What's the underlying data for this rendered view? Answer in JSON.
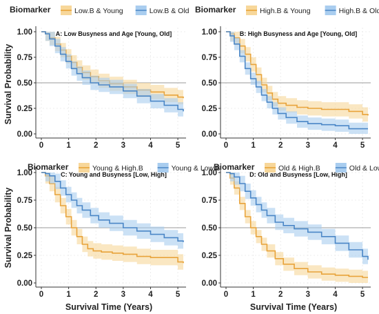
{
  "figure": {
    "ylabel": "Survival Probability",
    "xlabel": "Survival Time (Years)",
    "legend_title": "Biomarker",
    "colors": {
      "orange": "#e8a33a",
      "blue": "#4a86c6",
      "orange_band": "#f7d79a",
      "blue_band": "#a9cdef",
      "refline": "#999999"
    }
  },
  "chart_data": [
    {
      "type": "line",
      "panel_title": "A: Low Busyness and Age [Young, Old]",
      "xlim": [
        0,
        5.2
      ],
      "ylim": [
        0,
        1
      ],
      "xticks": [
        0,
        1,
        2,
        3,
        4,
        5
      ],
      "yticks": [
        0.0,
        0.25,
        0.5,
        0.75,
        1.0
      ],
      "ytick_labels": [
        "0.00",
        "0.25",
        "0.50",
        "0.75",
        "1.00"
      ],
      "reference_line": 0.5,
      "legend": [
        "Low.B & Young",
        "Low.B & Old"
      ],
      "series": [
        {
          "name": "Low.B & Young",
          "color": "orange",
          "band": 0.07,
          "x": [
            0,
            0.15,
            0.3,
            0.5,
            0.7,
            0.9,
            1.1,
            1.3,
            1.5,
            1.8,
            2.1,
            2.5,
            3.0,
            3.5,
            4.0,
            4.5,
            5.0,
            5.2
          ],
          "y": [
            1.0,
            0.98,
            0.94,
            0.88,
            0.82,
            0.76,
            0.7,
            0.65,
            0.6,
            0.56,
            0.52,
            0.49,
            0.46,
            0.43,
            0.41,
            0.38,
            0.36,
            0.35
          ]
        },
        {
          "name": "Low.B & Old",
          "color": "blue",
          "band": 0.07,
          "x": [
            0,
            0.15,
            0.3,
            0.5,
            0.7,
            0.9,
            1.1,
            1.3,
            1.5,
            1.8,
            2.1,
            2.5,
            3.0,
            3.5,
            4.0,
            4.5,
            5.0,
            5.2
          ],
          "y": [
            1.0,
            0.98,
            0.93,
            0.86,
            0.78,
            0.71,
            0.64,
            0.59,
            0.55,
            0.5,
            0.48,
            0.46,
            0.42,
            0.37,
            0.32,
            0.28,
            0.24,
            0.22
          ]
        }
      ]
    },
    {
      "type": "line",
      "panel_title": "B: High Busyness and Age [Young, Old]",
      "xlim": [
        0,
        5.2
      ],
      "ylim": [
        0,
        1
      ],
      "xticks": [
        0,
        1,
        2,
        3,
        4,
        5
      ],
      "yticks": [
        0.0,
        0.25,
        0.5,
        0.75,
        1.0
      ],
      "ytick_labels": [
        "0.00",
        "0.25",
        "0.50",
        "0.75",
        "1.00"
      ],
      "reference_line": 0.5,
      "legend": [
        "High.B & Young",
        "High.B & Old"
      ],
      "series": [
        {
          "name": "High.B & Young",
          "color": "orange",
          "band": 0.07,
          "x": [
            0,
            0.15,
            0.3,
            0.5,
            0.7,
            0.9,
            1.1,
            1.3,
            1.5,
            1.7,
            1.9,
            2.2,
            2.6,
            3.0,
            3.5,
            4.0,
            4.5,
            5.0,
            5.2
          ],
          "y": [
            1.0,
            0.98,
            0.94,
            0.86,
            0.78,
            0.68,
            0.58,
            0.48,
            0.4,
            0.34,
            0.3,
            0.28,
            0.26,
            0.25,
            0.24,
            0.24,
            0.22,
            0.19,
            0.18
          ]
        },
        {
          "name": "High.B & Old",
          "color": "blue",
          "band": 0.06,
          "x": [
            0,
            0.15,
            0.3,
            0.5,
            0.7,
            0.9,
            1.1,
            1.3,
            1.5,
            1.7,
            1.9,
            2.2,
            2.6,
            3.0,
            3.5,
            4.0,
            4.5,
            5.0,
            5.2
          ],
          "y": [
            1.0,
            0.96,
            0.88,
            0.76,
            0.64,
            0.54,
            0.46,
            0.38,
            0.31,
            0.25,
            0.2,
            0.16,
            0.12,
            0.1,
            0.09,
            0.08,
            0.05,
            0.05,
            0.05
          ]
        }
      ]
    },
    {
      "type": "line",
      "panel_title": "C: Young and Busyness [Low, High]",
      "xlim": [
        0,
        5.2
      ],
      "ylim": [
        0,
        1
      ],
      "xticks": [
        0,
        1,
        2,
        3,
        4,
        5
      ],
      "yticks": [
        0.0,
        0.25,
        0.5,
        0.75,
        1.0
      ],
      "ytick_labels": [
        "0.00",
        "0.25",
        "0.50",
        "0.75",
        "1.00"
      ],
      "reference_line": 0.5,
      "legend": [
        "Young & High.B",
        "Young & Low.B"
      ],
      "series": [
        {
          "name": "Young & High.B",
          "color": "orange",
          "band": 0.07,
          "x": [
            0,
            0.15,
            0.3,
            0.5,
            0.7,
            0.9,
            1.1,
            1.3,
            1.5,
            1.7,
            1.9,
            2.2,
            2.6,
            3.0,
            3.5,
            4.0,
            4.5,
            5.0,
            5.2
          ],
          "y": [
            1.0,
            0.97,
            0.9,
            0.8,
            0.7,
            0.6,
            0.5,
            0.42,
            0.35,
            0.31,
            0.29,
            0.28,
            0.27,
            0.26,
            0.24,
            0.23,
            0.23,
            0.19,
            0.18
          ]
        },
        {
          "name": "Young & Low.B",
          "color": "blue",
          "band": 0.07,
          "x": [
            0,
            0.15,
            0.3,
            0.5,
            0.7,
            0.9,
            1.1,
            1.3,
            1.5,
            1.8,
            2.1,
            2.5,
            3.0,
            3.5,
            4.0,
            4.5,
            5.0,
            5.2
          ],
          "y": [
            1.0,
            0.99,
            0.97,
            0.92,
            0.86,
            0.8,
            0.75,
            0.7,
            0.66,
            0.61,
            0.57,
            0.54,
            0.5,
            0.47,
            0.44,
            0.41,
            0.38,
            0.37
          ]
        }
      ]
    },
    {
      "type": "line",
      "panel_title": "D: Old and Busyness [Low, High]",
      "xlim": [
        0,
        5.2
      ],
      "ylim": [
        0,
        1
      ],
      "xticks": [
        0,
        1,
        2,
        3,
        4,
        5
      ],
      "yticks": [
        0.0,
        0.25,
        0.5,
        0.75,
        1.0
      ],
      "ytick_labels": [
        "0.00",
        "0.25",
        "0.50",
        "0.75",
        "1.00"
      ],
      "reference_line": 0.5,
      "legend": [
        "Old & High.B",
        "Old & Low.B"
      ],
      "series": [
        {
          "name": "Old & High.B",
          "color": "orange",
          "band": 0.06,
          "x": [
            0,
            0.15,
            0.3,
            0.5,
            0.7,
            0.9,
            1.1,
            1.3,
            1.5,
            1.8,
            2.1,
            2.5,
            3.0,
            3.5,
            4.0,
            4.5,
            5.0,
            5.2
          ],
          "y": [
            1.0,
            0.95,
            0.86,
            0.72,
            0.6,
            0.5,
            0.42,
            0.35,
            0.29,
            0.22,
            0.17,
            0.13,
            0.1,
            0.08,
            0.07,
            0.06,
            0.05,
            0.05
          ]
        },
        {
          "name": "Old & Low.B",
          "color": "blue",
          "band": 0.07,
          "x": [
            0,
            0.15,
            0.3,
            0.5,
            0.7,
            0.9,
            1.1,
            1.3,
            1.5,
            1.8,
            2.1,
            2.5,
            3.0,
            3.5,
            4.0,
            4.5,
            5.0,
            5.2
          ],
          "y": [
            1.0,
            0.99,
            0.96,
            0.9,
            0.83,
            0.77,
            0.71,
            0.66,
            0.61,
            0.55,
            0.52,
            0.49,
            0.46,
            0.42,
            0.36,
            0.3,
            0.24,
            0.21
          ]
        }
      ]
    }
  ]
}
